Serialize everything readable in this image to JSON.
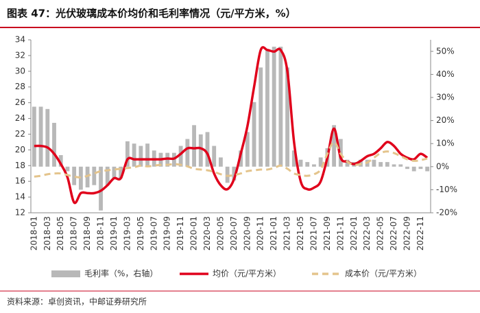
{
  "chart_data": {
    "type": "bar-line",
    "title": "图表 47：光伏玻璃成本价均价和毛利率情况（元/平方米，%）",
    "source": "资料来源：卓创资讯，中邮证券研究所",
    "categories": [
      "2018-01",
      null,
      "2018-03",
      null,
      "2018-05",
      null,
      "2018-07",
      null,
      "2018-09",
      null,
      "2018-11",
      null,
      "2019-01",
      null,
      "2019-03",
      null,
      "2019-05",
      null,
      "2019-07",
      null,
      "2019-09",
      null,
      "2019-11",
      null,
      "2020-01",
      null,
      "2020-03",
      null,
      "2020-05",
      null,
      "2020-07",
      null,
      "2020-09",
      null,
      "2020-11",
      null,
      "2021-01",
      null,
      "2021-03",
      null,
      "2021-05",
      null,
      "2021-07",
      null,
      "2021-09",
      null,
      "2021-11",
      null,
      "2022-01",
      null,
      "2022-03",
      null,
      "2022-05",
      null,
      "2022-07",
      null,
      "2022-09",
      null,
      "2022-11",
      null
    ],
    "series": [
      {
        "name": "毛利率（%，右轴）",
        "kind": "bar",
        "axis": "y2",
        "color": "#b8b8b8",
        "values": [
          26,
          26,
          25,
          19,
          5,
          -2,
          -8,
          -10,
          -9,
          -8,
          -19,
          -8,
          -5,
          -5,
          11,
          10,
          9,
          10,
          7,
          6,
          6,
          6,
          9,
          12,
          18,
          14,
          15,
          9,
          4,
          -7,
          -6,
          7,
          15,
          28,
          43,
          51,
          52,
          52,
          43,
          7,
          3,
          2,
          1,
          4,
          8,
          18,
          12,
          3,
          2,
          3,
          3,
          3,
          2,
          2,
          1,
          1,
          -1,
          -2,
          -1,
          -2
        ]
      },
      {
        "name": "均价（元/平方米）",
        "kind": "line",
        "color": "#e0001b",
        "values": [
          20.5,
          20.5,
          20.3,
          19.5,
          18.2,
          16.5,
          13.3,
          14.5,
          14.5,
          14.5,
          14.8,
          15.5,
          16.4,
          16.4,
          18.8,
          18.8,
          18.8,
          18.8,
          18.8,
          18.8,
          18.9,
          18.9,
          19.5,
          20.2,
          20.2,
          20.2,
          19.5,
          17,
          15.5,
          15,
          16.3,
          19.5,
          23,
          28,
          32.7,
          32.7,
          32.5,
          32.7,
          30,
          21,
          16,
          15,
          15.2,
          16,
          19,
          22.7,
          19,
          18.5,
          18.2,
          18.6,
          19.2,
          19.5,
          20.2,
          21,
          20.5,
          19.5,
          19,
          18.8,
          19.5,
          19
        ]
      },
      {
        "name": "成本价（元/平方米）",
        "kind": "dashed",
        "color": "#e4c48c",
        "values": [
          16.6,
          16.7,
          16.9,
          17.0,
          17.0,
          16.8,
          16.6,
          16.5,
          16.7,
          17.0,
          17.3,
          17.4,
          17.5,
          17.6,
          17.7,
          17.8,
          18.0,
          17.9,
          18.0,
          18.1,
          18.1,
          18.2,
          18.1,
          17.9,
          17.6,
          17.5,
          17.4,
          17.2,
          16.9,
          16.7,
          16.8,
          17.0,
          17.3,
          17.4,
          17.5,
          17.5,
          17.7,
          18.0,
          17.6,
          17.0,
          16.8,
          16.7,
          16.9,
          17.5,
          19.5,
          21.0,
          19.5,
          18.5,
          18.1,
          18.2,
          18.4,
          19.0,
          19.6,
          19.8,
          19.6,
          19.2,
          18.8,
          18.6,
          18.7,
          18.9
        ]
      }
    ],
    "ylim": [
      12,
      34
    ],
    "yticks": [
      12,
      14,
      16,
      18,
      20,
      22,
      24,
      26,
      28,
      30,
      32,
      34
    ],
    "y2lim": [
      -20,
      55
    ],
    "y2ticks": [
      {
        "value": -20,
        "label": "-20%"
      },
      {
        "value": -10,
        "label": "-10%"
      },
      {
        "value": 0,
        "label": "0%"
      },
      {
        "value": 10,
        "label": "10%"
      },
      {
        "value": 20,
        "label": "20%"
      },
      {
        "value": 30,
        "label": "30%"
      },
      {
        "value": 40,
        "label": "40%"
      },
      {
        "value": 50,
        "label": "50%"
      }
    ]
  }
}
